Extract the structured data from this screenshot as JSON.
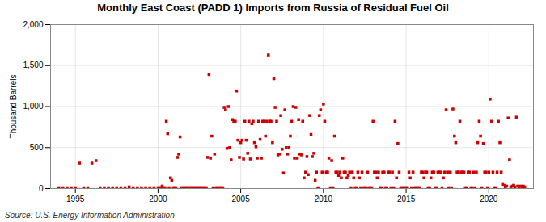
{
  "chart_data": {
    "type": "scatter",
    "title": "Monthly East Coast (PADD 1) Imports from Russia of Residual Fuel Oil",
    "ylabel": "Thousand Barrels",
    "source": "Source: U.S. Energy Information Administration",
    "color": "#cc0000",
    "marker": "square",
    "grid": true,
    "xlim": [
      1993.5,
      2022.7
    ],
    "ylim": [
      0,
      2000
    ],
    "xticks": [
      1995,
      2000,
      2005,
      2010,
      2015,
      2020
    ],
    "yticks": [
      0,
      500,
      {
        "value": 1000,
        "label": "1,000"
      },
      {
        "value": 1500,
        "label": "1,500"
      },
      {
        "value": 2000,
        "label": "2,000"
      }
    ],
    "x": [
      1994.0,
      1994.25,
      1994.5,
      1994.75,
      1995.0,
      1995.25,
      1995.5,
      1995.75,
      1996.0,
      1996.25,
      1996.5,
      1996.75,
      1997.0,
      1997.25,
      1997.5,
      1997.75,
      1998.0,
      1998.25,
      1998.5,
      1998.75,
      1999.0,
      1999.25,
      1999.5,
      1999.75,
      2000.0,
      2000.08,
      2000.17,
      2000.25,
      2000.33,
      2000.42,
      2000.5,
      2000.58,
      2000.67,
      2000.75,
      2000.83,
      2000.92,
      2001.0,
      2001.08,
      2001.17,
      2001.25,
      2001.33,
      2001.42,
      2001.5,
      2001.58,
      2001.67,
      2001.75,
      2001.83,
      2001.92,
      2002.0,
      2002.08,
      2002.17,
      2002.25,
      2002.33,
      2002.42,
      2002.5,
      2002.58,
      2002.67,
      2002.75,
      2002.83,
      2002.92,
      2003.0,
      2003.08,
      2003.17,
      2003.25,
      2003.33,
      2003.42,
      2003.5,
      2003.58,
      2003.67,
      2003.75,
      2003.83,
      2003.92,
      2004.0,
      2004.08,
      2004.17,
      2004.25,
      2004.33,
      2004.42,
      2004.5,
      2004.58,
      2004.67,
      2004.75,
      2004.83,
      2004.92,
      2005.0,
      2005.08,
      2005.17,
      2005.25,
      2005.33,
      2005.42,
      2005.5,
      2005.58,
      2005.67,
      2005.75,
      2005.83,
      2005.92,
      2006.0,
      2006.08,
      2006.17,
      2006.25,
      2006.33,
      2006.42,
      2006.5,
      2006.58,
      2006.67,
      2006.75,
      2006.83,
      2006.92,
      2007.0,
      2007.08,
      2007.17,
      2007.25,
      2007.33,
      2007.42,
      2007.5,
      2007.58,
      2007.67,
      2007.75,
      2007.83,
      2007.92,
      2008.0,
      2008.08,
      2008.17,
      2008.25,
      2008.33,
      2008.42,
      2008.5,
      2008.58,
      2008.67,
      2008.75,
      2008.83,
      2008.92,
      2009.0,
      2009.08,
      2009.17,
      2009.25,
      2009.33,
      2009.42,
      2009.5,
      2009.58,
      2009.67,
      2009.75,
      2009.83,
      2009.92,
      2010.0,
      2010.08,
      2010.17,
      2010.25,
      2010.33,
      2010.42,
      2010.5,
      2010.58,
      2010.67,
      2010.75,
      2010.83,
      2010.92,
      2011.0,
      2011.08,
      2011.17,
      2011.25,
      2011.33,
      2011.42,
      2011.5,
      2011.58,
      2011.67,
      2011.75,
      2011.83,
      2011.92,
      2012.0,
      2012.08,
      2012.17,
      2012.25,
      2012.33,
      2012.42,
      2012.5,
      2012.58,
      2012.67,
      2012.75,
      2012.83,
      2012.92,
      2013.0,
      2013.08,
      2013.17,
      2013.25,
      2013.33,
      2013.42,
      2013.5,
      2013.58,
      2013.67,
      2013.75,
      2013.83,
      2013.92,
      2014.0,
      2014.08,
      2014.17,
      2014.25,
      2014.33,
      2014.42,
      2014.5,
      2014.58,
      2014.67,
      2014.75,
      2014.83,
      2014.92,
      2015.0,
      2015.08,
      2015.17,
      2015.25,
      2015.33,
      2015.42,
      2015.5,
      2015.58,
      2015.67,
      2015.75,
      2015.83,
      2015.92,
      2016.0,
      2016.08,
      2016.17,
      2016.25,
      2016.33,
      2016.42,
      2016.5,
      2016.58,
      2016.67,
      2016.75,
      2016.83,
      2016.92,
      2017.0,
      2017.08,
      2017.17,
      2017.25,
      2017.33,
      2017.42,
      2017.5,
      2017.58,
      2017.67,
      2017.75,
      2017.83,
      2017.92,
      2018.0,
      2018.08,
      2018.17,
      2018.25,
      2018.33,
      2018.42,
      2018.5,
      2018.58,
      2018.67,
      2018.75,
      2018.83,
      2018.92,
      2019.0,
      2019.08,
      2019.17,
      2019.25,
      2019.33,
      2019.42,
      2019.5,
      2019.58,
      2019.67,
      2019.75,
      2019.83,
      2019.92,
      2020.0,
      2020.08,
      2020.17,
      2020.25,
      2020.33,
      2020.42,
      2020.5,
      2020.58,
      2020.67,
      2020.75,
      2020.83,
      2020.92,
      2021.0,
      2021.08,
      2021.17,
      2021.25,
      2021.33,
      2021.42,
      2021.5,
      2021.58,
      2021.67,
      2021.75,
      2021.83,
      2021.92,
      2022.0,
      2022.08,
      2022.17
    ],
    "values": [
      0,
      0,
      0,
      0,
      0,
      310,
      0,
      0,
      310,
      340,
      0,
      0,
      0,
      0,
      0,
      0,
      0,
      20,
      0,
      0,
      0,
      0,
      0,
      0,
      0,
      0,
      0,
      30,
      0,
      0,
      820,
      670,
      0,
      130,
      100,
      0,
      0,
      0,
      380,
      420,
      630,
      0,
      0,
      0,
      0,
      0,
      0,
      0,
      0,
      0,
      0,
      0,
      0,
      0,
      0,
      0,
      0,
      0,
      0,
      0,
      380,
      1390,
      370,
      640,
      0,
      420,
      0,
      0,
      0,
      0,
      0,
      0,
      990,
      960,
      490,
      1000,
      500,
      350,
      840,
      820,
      820,
      1190,
      590,
      380,
      560,
      590,
      360,
      820,
      590,
      430,
      820,
      360,
      790,
      820,
      560,
      510,
      370,
      820,
      600,
      370,
      820,
      820,
      640,
      820,
      1630,
      820,
      820,
      560,
      1340,
      990,
      820,
      410,
      420,
      890,
      480,
      190,
      960,
      500,
      420,
      500,
      640,
      820,
      1000,
      370,
      990,
      370,
      840,
      420,
      410,
      820,
      130,
      200,
      390,
      170,
      890,
      660,
      390,
      430,
      100,
      200,
      0,
      890,
      960,
      200,
      1030,
      820,
      200,
      200,
      370,
      0,
      340,
      0,
      640,
      200,
      200,
      160,
      200,
      130,
      370,
      200,
      200,
      130,
      160,
      200,
      0,
      200,
      130,
      0,
      0,
      200,
      130,
      0,
      200,
      0,
      0,
      0,
      200,
      0,
      0,
      0,
      820,
      200,
      200,
      130,
      200,
      0,
      0,
      200,
      200,
      0,
      0,
      200,
      200,
      0,
      200,
      0,
      820,
      130,
      550,
      200,
      0,
      0,
      0,
      0,
      0,
      0,
      200,
      130,
      0,
      200,
      0,
      0,
      0,
      0,
      0,
      200,
      200,
      130,
      200,
      200,
      0,
      0,
      130,
      200,
      200,
      0,
      0,
      200,
      200,
      200,
      0,
      130,
      200,
      960,
      200,
      0,
      200,
      0,
      970,
      640,
      560,
      200,
      200,
      820,
      200,
      200,
      200,
      0,
      0,
      200,
      200,
      0,
      0,
      200,
      0,
      200,
      560,
      820,
      640,
      0,
      550,
      200,
      200,
      0,
      200,
      1090,
      820,
      200,
      0,
      0,
      200,
      820,
      560,
      200,
      50,
      40,
      20,
      30,
      860,
      350,
      20,
      30,
      40,
      20,
      870,
      30,
      20,
      30,
      20,
      30,
      20
    ]
  }
}
